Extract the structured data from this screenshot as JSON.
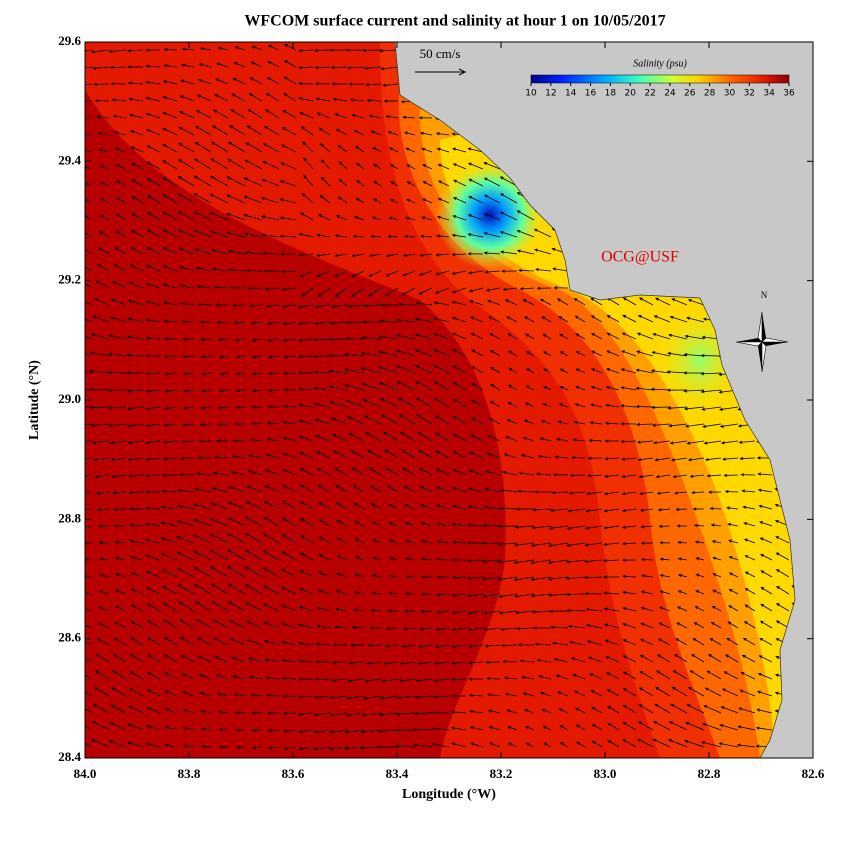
{
  "title": "WFCOM surface current and salinity at hour 1 on 10/05/2017",
  "x_axis": {
    "label": "Longitude (°W)",
    "lim": [
      84,
      82.6
    ],
    "ticks": [
      {
        "value": 84,
        "label": "84.0"
      },
      83.8,
      83.6,
      83.4,
      83.2,
      {
        "value": 83,
        "label": "83.0"
      },
      82.8,
      82.6
    ]
  },
  "y_axis": {
    "label": "Latitude (°N)",
    "lim": [
      28.4,
      29.6
    ],
    "ticks": [
      28.4,
      28.6,
      28.8,
      {
        "value": 29,
        "label": "29.0"
      },
      29.2,
      29.4,
      29.6
    ]
  },
  "colorbar": {
    "title": "Salinity (psu)",
    "lim": [
      10,
      36
    ],
    "ticks": [
      10,
      12,
      14,
      16,
      18,
      20,
      22,
      24,
      26,
      28,
      30,
      32,
      34,
      36
    ]
  },
  "scale_arrow": {
    "label": "50 cm/s"
  },
  "credit": "OCG@USF",
  "compass": {
    "label": "N"
  }
}
